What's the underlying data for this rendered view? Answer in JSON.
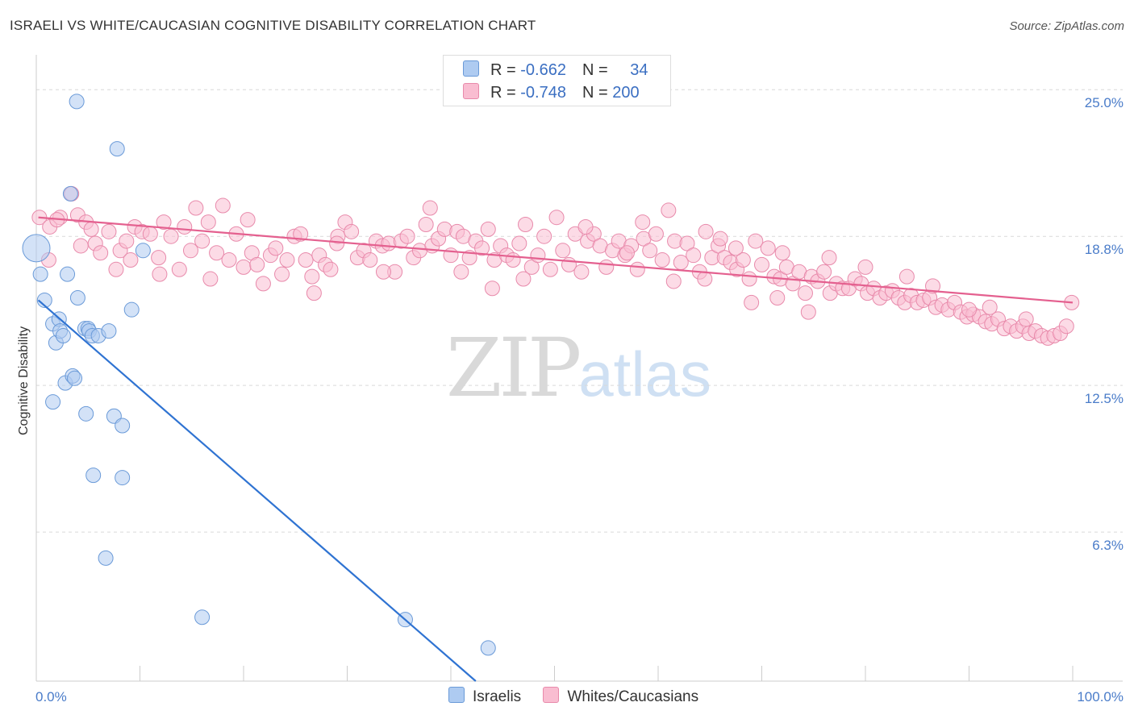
{
  "header": {
    "title": "ISRAELI VS WHITE/CAUCASIAN COGNITIVE DISABILITY CORRELATION CHART",
    "source": "Source: ZipAtlas.com"
  },
  "legend": {
    "rows": [
      {
        "r_label": "R = ",
        "r_value": "-0.662",
        "n_label": "N = ",
        "n_value": "34",
        "color": "#aecbf1"
      },
      {
        "r_label": "R = ",
        "r_value": "-0.748",
        "n_label": "N = ",
        "n_value": "200",
        "color": "#f9bdd1"
      }
    ]
  },
  "bottom_legend": [
    {
      "label": "Israelis",
      "color": "#aecbf1"
    },
    {
      "label": "Whites/Caucasians",
      "color": "#f9bdd1"
    }
  ],
  "watermark": {
    "part1": "ZIP",
    "part2": "atlas"
  },
  "chart_data": {
    "type": "scatter",
    "title": "ISRAELI VS WHITE/CAUCASIAN COGNITIVE DISABILITY CORRELATION CHART",
    "xlabel": "",
    "ylabel": "Cognitive Disability",
    "xlim": [
      0,
      100
    ],
    "ylim": [
      0,
      26.2
    ],
    "x_tick_labels": [
      "0.0%",
      "100.0%"
    ],
    "y_ticks": [
      6.3,
      12.5,
      18.8,
      25.0
    ],
    "y_tick_labels": [
      "6.3%",
      "12.5%",
      "18.8%",
      "25.0%"
    ],
    "grid": "horizontal dashed",
    "legend_position": "top-center",
    "series": [
      {
        "name": "Israelis",
        "color": "#aecbf1",
        "stroke": "#6a9ad8",
        "line_color": "#2f73d2",
        "trend": {
          "x": [
            0.2,
            42.4
          ],
          "y": [
            16.1,
            0.0
          ]
        },
        "points": [
          [
            0.0,
            18.3
          ],
          [
            0.4,
            17.2
          ],
          [
            0.8,
            16.1
          ],
          [
            1.6,
            15.1
          ],
          [
            2.2,
            15.3
          ],
          [
            1.9,
            14.3
          ],
          [
            2.3,
            14.8
          ],
          [
            2.6,
            14.6
          ],
          [
            3.0,
            17.2
          ],
          [
            3.3,
            20.6
          ],
          [
            2.8,
            12.6
          ],
          [
            3.5,
            12.9
          ],
          [
            3.7,
            12.8
          ],
          [
            1.6,
            11.8
          ],
          [
            4.7,
            14.9
          ],
          [
            5.0,
            14.9
          ],
          [
            5.1,
            14.8
          ],
          [
            5.4,
            14.6
          ],
          [
            6.0,
            14.6
          ],
          [
            7.0,
            14.8
          ],
          [
            4.8,
            11.3
          ],
          [
            7.5,
            11.2
          ],
          [
            8.3,
            10.8
          ],
          [
            5.5,
            8.7
          ],
          [
            8.3,
            8.6
          ],
          [
            6.7,
            5.2
          ],
          [
            9.2,
            15.7
          ],
          [
            10.3,
            18.2
          ],
          [
            7.8,
            22.5
          ],
          [
            3.9,
            24.5
          ],
          [
            4.0,
            16.2
          ],
          [
            16.0,
            2.7
          ],
          [
            35.6,
            2.6
          ],
          [
            43.6,
            1.4
          ]
        ]
      },
      {
        "name": "Whites/Caucasians",
        "color": "#f9bdd1",
        "stroke": "#e88aab",
        "line_color": "#e4608f",
        "trend": {
          "x": [
            0.2,
            100
          ],
          "y": [
            19.6,
            16.0
          ]
        },
        "points": [
          [
            0.3,
            19.6
          ],
          [
            1.3,
            19.2
          ],
          [
            2.3,
            19.6
          ],
          [
            3.4,
            20.6
          ],
          [
            4.0,
            19.7
          ],
          [
            4.8,
            19.4
          ],
          [
            2.0,
            19.5
          ],
          [
            1.2,
            17.8
          ],
          [
            4.3,
            18.4
          ],
          [
            5.7,
            18.5
          ],
          [
            6.2,
            18.1
          ],
          [
            7.0,
            19.0
          ],
          [
            7.7,
            17.4
          ],
          [
            8.1,
            18.2
          ],
          [
            8.7,
            18.6
          ],
          [
            9.1,
            17.8
          ],
          [
            9.5,
            19.2
          ],
          [
            10.2,
            19.0
          ],
          [
            11.0,
            18.9
          ],
          [
            11.8,
            17.9
          ],
          [
            12.3,
            19.4
          ],
          [
            13.0,
            18.8
          ],
          [
            13.8,
            17.4
          ],
          [
            14.3,
            19.2
          ],
          [
            14.9,
            18.2
          ],
          [
            15.4,
            20.0
          ],
          [
            16.0,
            18.6
          ],
          [
            16.8,
            17.0
          ],
          [
            17.4,
            18.1
          ],
          [
            18.0,
            20.1
          ],
          [
            18.6,
            17.8
          ],
          [
            19.3,
            18.9
          ],
          [
            20.0,
            17.5
          ],
          [
            20.8,
            18.1
          ],
          [
            21.3,
            17.6
          ],
          [
            21.9,
            16.8
          ],
          [
            22.6,
            18.0
          ],
          [
            23.1,
            18.3
          ],
          [
            23.7,
            17.2
          ],
          [
            24.2,
            17.8
          ],
          [
            24.9,
            18.8
          ],
          [
            25.5,
            18.9
          ],
          [
            26.0,
            17.8
          ],
          [
            26.6,
            17.1
          ],
          [
            27.3,
            18.0
          ],
          [
            27.9,
            17.6
          ],
          [
            28.4,
            17.4
          ],
          [
            29.1,
            18.8
          ],
          [
            29.8,
            19.4
          ],
          [
            30.4,
            19.0
          ],
          [
            31.0,
            17.9
          ],
          [
            31.6,
            18.2
          ],
          [
            32.2,
            17.8
          ],
          [
            32.8,
            18.6
          ],
          [
            33.4,
            18.4
          ],
          [
            34.0,
            18.5
          ],
          [
            34.6,
            17.3
          ],
          [
            35.2,
            18.6
          ],
          [
            35.8,
            18.8
          ],
          [
            36.4,
            17.9
          ],
          [
            37.0,
            18.2
          ],
          [
            37.6,
            19.3
          ],
          [
            38.2,
            18.4
          ],
          [
            38.8,
            18.7
          ],
          [
            39.4,
            19.1
          ],
          [
            40.0,
            18.0
          ],
          [
            40.6,
            19.0
          ],
          [
            41.2,
            18.8
          ],
          [
            41.8,
            17.9
          ],
          [
            42.4,
            18.6
          ],
          [
            43.0,
            18.3
          ],
          [
            43.6,
            19.1
          ],
          [
            44.2,
            17.8
          ],
          [
            44.8,
            18.4
          ],
          [
            45.4,
            18.0
          ],
          [
            46.0,
            17.8
          ],
          [
            46.6,
            18.5
          ],
          [
            47.2,
            19.3
          ],
          [
            47.8,
            17.5
          ],
          [
            48.4,
            18.0
          ],
          [
            49.0,
            18.8
          ],
          [
            49.6,
            17.4
          ],
          [
            50.2,
            19.6
          ],
          [
            50.8,
            18.2
          ],
          [
            51.4,
            17.6
          ],
          [
            52.0,
            18.9
          ],
          [
            52.6,
            17.3
          ],
          [
            53.2,
            18.6
          ],
          [
            53.8,
            18.9
          ],
          [
            54.4,
            18.4
          ],
          [
            55.0,
            17.5
          ],
          [
            55.6,
            18.2
          ],
          [
            56.2,
            18.6
          ],
          [
            56.8,
            18.0
          ],
          [
            57.4,
            18.4
          ],
          [
            58.0,
            17.4
          ],
          [
            58.6,
            18.7
          ],
          [
            59.2,
            18.2
          ],
          [
            59.8,
            18.9
          ],
          [
            60.4,
            17.8
          ],
          [
            61.0,
            19.9
          ],
          [
            61.6,
            18.6
          ],
          [
            62.2,
            17.7
          ],
          [
            62.8,
            18.5
          ],
          [
            63.4,
            18.0
          ],
          [
            64.0,
            17.3
          ],
          [
            64.6,
            19.0
          ],
          [
            65.2,
            17.9
          ],
          [
            65.8,
            18.4
          ],
          [
            66.4,
            17.9
          ],
          [
            67.0,
            17.7
          ],
          [
            67.6,
            17.4
          ],
          [
            68.2,
            17.8
          ],
          [
            68.8,
            17.0
          ],
          [
            69.4,
            18.6
          ],
          [
            70.0,
            17.6
          ],
          [
            70.6,
            18.3
          ],
          [
            71.2,
            17.1
          ],
          [
            71.8,
            17.0
          ],
          [
            72.4,
            17.5
          ],
          [
            73.0,
            16.8
          ],
          [
            73.6,
            17.3
          ],
          [
            74.2,
            16.4
          ],
          [
            74.8,
            17.1
          ],
          [
            75.4,
            16.9
          ],
          [
            76.0,
            17.3
          ],
          [
            76.6,
            16.4
          ],
          [
            77.2,
            16.8
          ],
          [
            77.8,
            16.6
          ],
          [
            78.4,
            16.6
          ],
          [
            79.0,
            17.0
          ],
          [
            79.6,
            16.8
          ],
          [
            80.2,
            16.4
          ],
          [
            80.8,
            16.6
          ],
          [
            81.4,
            16.2
          ],
          [
            82.0,
            16.4
          ],
          [
            82.6,
            16.5
          ],
          [
            83.2,
            16.2
          ],
          [
            83.8,
            16.0
          ],
          [
            84.4,
            16.3
          ],
          [
            85.0,
            16.0
          ],
          [
            85.6,
            16.1
          ],
          [
            86.2,
            16.2
          ],
          [
            86.8,
            15.8
          ],
          [
            87.4,
            15.9
          ],
          [
            88.0,
            15.7
          ],
          [
            88.6,
            16.0
          ],
          [
            89.2,
            15.6
          ],
          [
            89.8,
            15.4
          ],
          [
            90.4,
            15.5
          ],
          [
            91.0,
            15.4
          ],
          [
            91.6,
            15.2
          ],
          [
            92.2,
            15.1
          ],
          [
            92.8,
            15.3
          ],
          [
            93.4,
            14.9
          ],
          [
            94.0,
            15.0
          ],
          [
            94.6,
            14.8
          ],
          [
            95.2,
            15.0
          ],
          [
            95.8,
            14.7
          ],
          [
            96.4,
            14.8
          ],
          [
            97.0,
            14.6
          ],
          [
            97.6,
            14.5
          ],
          [
            98.2,
            14.6
          ],
          [
            98.8,
            14.7
          ],
          [
            99.4,
            15.0
          ],
          [
            99.9,
            16.0
          ],
          [
            61.5,
            16.9
          ],
          [
            69.0,
            16.0
          ],
          [
            33.5,
            17.3
          ],
          [
            26.8,
            16.4
          ],
          [
            47.0,
            17.0
          ],
          [
            57.0,
            18.1
          ],
          [
            64.5,
            17.0
          ],
          [
            72.0,
            18.1
          ],
          [
            84.0,
            17.1
          ],
          [
            92.0,
            15.8
          ],
          [
            80.0,
            17.5
          ],
          [
            53.0,
            19.2
          ],
          [
            38.0,
            20.0
          ],
          [
            20.4,
            19.5
          ],
          [
            11.9,
            17.2
          ],
          [
            44.0,
            16.6
          ],
          [
            86.5,
            16.7
          ],
          [
            76.5,
            17.9
          ],
          [
            66.0,
            18.7
          ],
          [
            58.5,
            19.4
          ],
          [
            41.0,
            17.3
          ],
          [
            29.0,
            18.5
          ],
          [
            16.6,
            19.4
          ],
          [
            5.3,
            19.1
          ],
          [
            95.5,
            15.3
          ],
          [
            90.0,
            15.7
          ],
          [
            74.5,
            15.6
          ],
          [
            71.5,
            16.2
          ],
          [
            67.5,
            18.3
          ]
        ]
      }
    ]
  }
}
